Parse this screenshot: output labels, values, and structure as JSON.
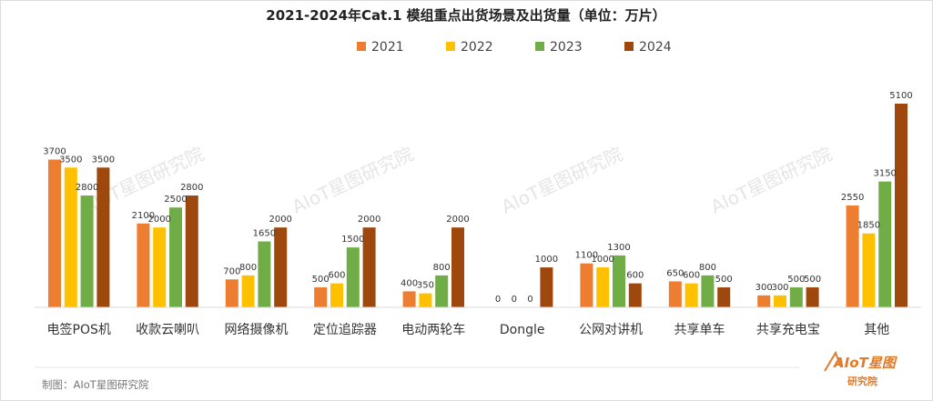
{
  "chart_data": {
    "type": "bar",
    "title": "2021-2024年Cat.1 模组重点出货场景及出货量（单位：万片）",
    "categories": [
      "电签POS机",
      "收款云喇叭",
      "网络摄像机",
      "定位追踪器",
      "电动两轮车",
      "Dongle",
      "公网对讲机",
      "共享单车",
      "共享充电宝",
      "其他"
    ],
    "series": [
      {
        "name": "2021",
        "color": "#ed7d31",
        "values": [
          3700,
          2100,
          700,
          500,
          400,
          0,
          1100,
          650,
          300,
          2550
        ]
      },
      {
        "name": "2022",
        "color": "#ffc000",
        "values": [
          3500,
          2000,
          800,
          600,
          350,
          0,
          1000,
          600,
          300,
          1850
        ]
      },
      {
        "name": "2023",
        "color": "#70ad47",
        "values": [
          2800,
          2500,
          1650,
          1500,
          800,
          0,
          1300,
          800,
          500,
          3150
        ]
      },
      {
        "name": "2024",
        "color": "#9e480e",
        "values": [
          3500,
          2800,
          2000,
          2000,
          2000,
          1000,
          600,
          500,
          500,
          5100
        ]
      }
    ],
    "ylim": [
      0,
      5500
    ],
    "legend": "top-center",
    "grid": false
  },
  "watermark": "AIoT星图研究院",
  "credit": "制图：AIoT星图研究院",
  "logo": {
    "main": "AIoT星图",
    "sub": "研究院"
  }
}
